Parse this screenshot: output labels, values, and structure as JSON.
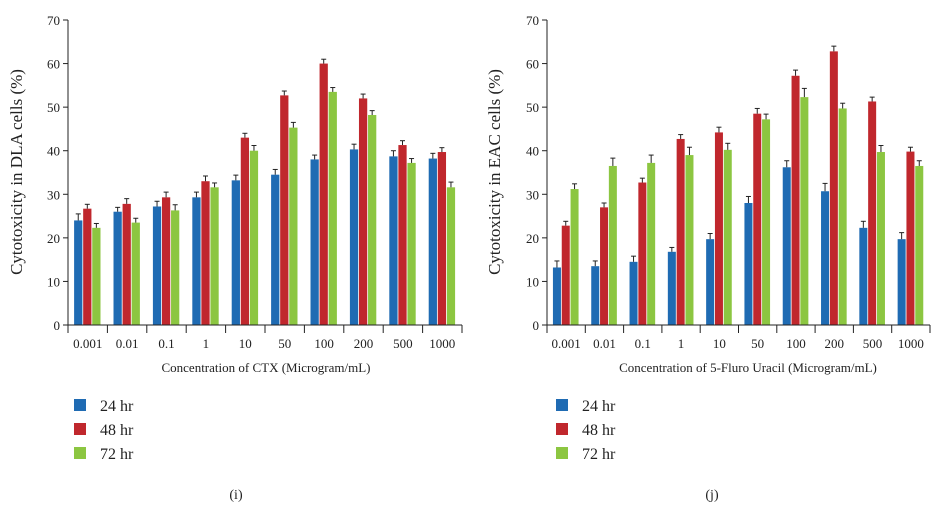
{
  "panels": [
    {
      "caption": "(i)",
      "chart_data": {
        "type": "bar",
        "categories": [
          "0.001",
          "0.01",
          "0.1",
          "1",
          "10",
          "50",
          "100",
          "200",
          "500",
          "1000"
        ],
        "series": [
          {
            "name": "24 hr",
            "color": "#1f6bb3",
            "values": [
              24.0,
              26.0,
              27.2,
              29.3,
              33.2,
              34.5,
              38.0,
              40.3,
              38.7,
              38.2
            ],
            "errors": [
              1.5,
              1.0,
              1.2,
              1.2,
              1.2,
              1.2,
              1.0,
              1.2,
              1.3,
              1.2
            ]
          },
          {
            "name": "48 hr",
            "color": "#c0272d",
            "values": [
              26.7,
              27.8,
              29.3,
              33.0,
              43.0,
              52.7,
              60.0,
              52.0,
              41.3,
              39.7
            ],
            "errors": [
              1.0,
              1.2,
              1.2,
              1.2,
              1.0,
              1.0,
              1.0,
              1.0,
              1.0,
              1.0
            ]
          },
          {
            "name": "72 hr",
            "color": "#8cc641",
            "values": [
              22.3,
              23.5,
              26.3,
              31.6,
              40.0,
              45.3,
              53.5,
              48.2,
              37.2,
              31.6
            ],
            "errors": [
              1.0,
              1.0,
              1.3,
              1.0,
              1.2,
              1.2,
              1.0,
              1.0,
              1.0,
              1.2
            ]
          }
        ],
        "xlabel": "Concentration of CTX (Microgram/mL)",
        "ylabel": "Cytotoxicity in DLA cells (%)",
        "ylim": [
          0,
          70
        ],
        "yticks": [
          0,
          10,
          20,
          30,
          40,
          50,
          60,
          70
        ],
        "grid": false,
        "legend": "bottom-left"
      }
    },
    {
      "caption": "(j)",
      "chart_data": {
        "type": "bar",
        "categories": [
          "0.001",
          "0.01",
          "0.1",
          "1",
          "10",
          "50",
          "100",
          "200",
          "500",
          "1000"
        ],
        "series": [
          {
            "name": "24 hr",
            "color": "#1f6bb3",
            "values": [
              13.2,
              13.5,
              14.5,
              16.8,
              19.7,
              28.0,
              36.2,
              30.7,
              22.3,
              19.7
            ],
            "errors": [
              1.5,
              1.2,
              1.3,
              1.0,
              1.3,
              1.5,
              1.5,
              1.8,
              1.5,
              1.5
            ]
          },
          {
            "name": "48 hr",
            "color": "#c0272d",
            "values": [
              22.8,
              27.0,
              32.7,
              42.7,
              44.2,
              48.5,
              57.2,
              62.8,
              51.3,
              39.8
            ],
            "errors": [
              1.0,
              1.0,
              1.0,
              1.0,
              1.2,
              1.2,
              1.3,
              1.2,
              1.0,
              1.0
            ]
          },
          {
            "name": "72 hr",
            "color": "#8cc641",
            "values": [
              31.2,
              36.5,
              37.2,
              39.0,
              40.2,
              47.2,
              52.3,
              49.7,
              39.7,
              36.5
            ],
            "errors": [
              1.2,
              1.8,
              1.8,
              1.8,
              1.5,
              1.2,
              2.0,
              1.2,
              1.5,
              1.2
            ]
          }
        ],
        "xlabel": "Concentration of 5-Fluro Uracil (Microgram/mL)",
        "ylabel": "Cytotoxicity in EAC cells (%)",
        "ylim": [
          0,
          70
        ],
        "yticks": [
          0,
          10,
          20,
          30,
          40,
          50,
          60,
          70
        ],
        "grid": false,
        "legend": "bottom-left"
      }
    }
  ]
}
